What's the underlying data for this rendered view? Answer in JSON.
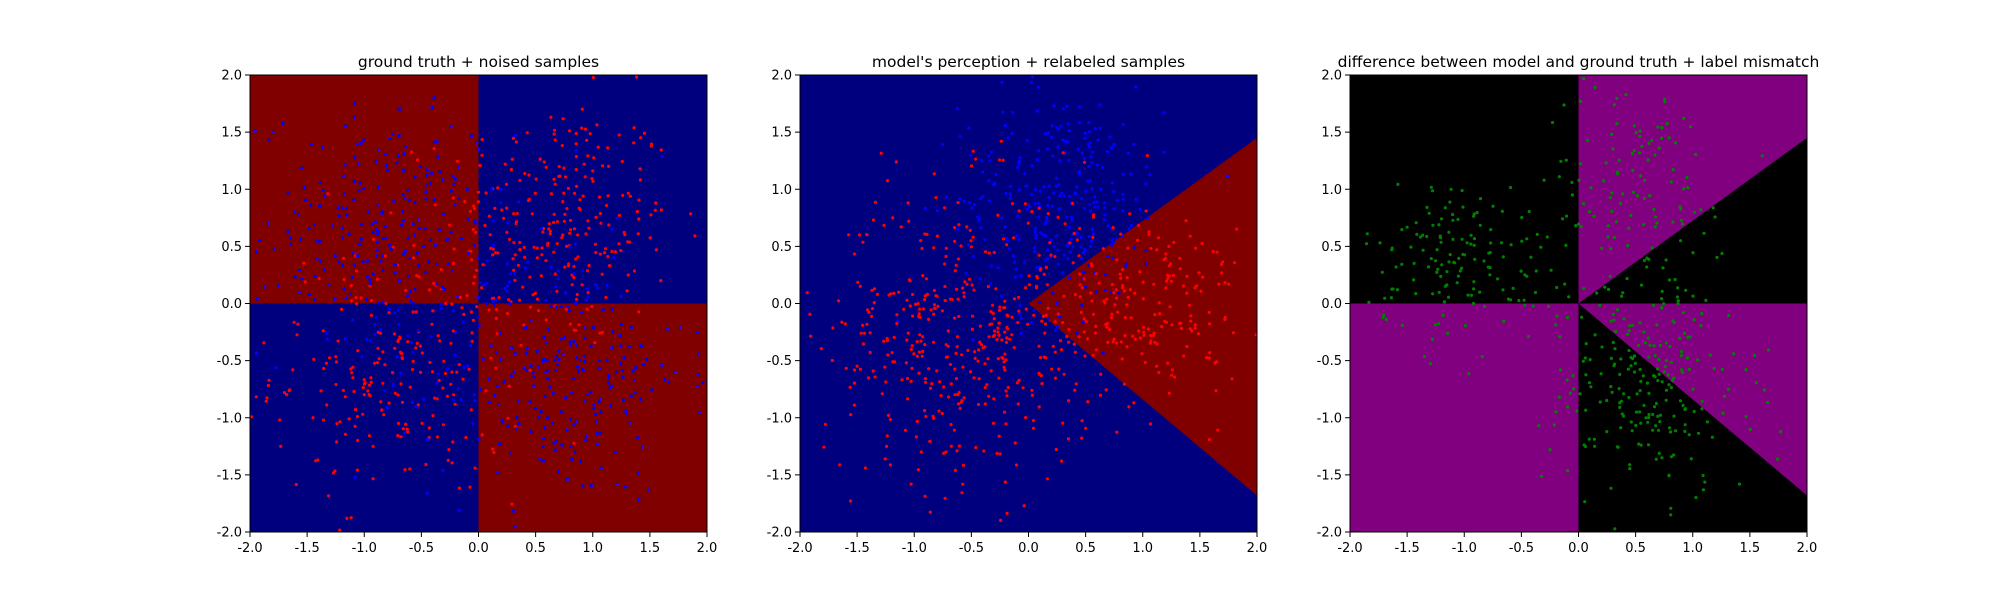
{
  "chart_data": [
    {
      "type": "scatter",
      "title": "ground truth + noised samples",
      "xlim": [
        -2.0,
        2.0
      ],
      "ylim": [
        -2.0,
        2.0
      ],
      "xticks": [
        "-2.0",
        "-1.5",
        "-1.0",
        "-0.5",
        "0.0",
        "0.5",
        "1.0",
        "1.5",
        "2.0"
      ],
      "yticks": [
        "-2.0",
        "-1.5",
        "-1.0",
        "-0.5",
        "0.0",
        "0.5",
        "1.0",
        "1.5",
        "2.0"
      ],
      "regions": [
        {
          "polygon": [
            [
              -2,
              0
            ],
            [
              0,
              0
            ],
            [
              0,
              2
            ],
            [
              -2,
              2
            ]
          ],
          "color": "#800000"
        },
        {
          "polygon": [
            [
              0,
              0
            ],
            [
              2,
              0
            ],
            [
              2,
              2
            ],
            [
              0,
              2
            ]
          ],
          "color": "#00007f"
        },
        {
          "polygon": [
            [
              -2,
              -2
            ],
            [
              0,
              -2
            ],
            [
              0,
              0
            ],
            [
              -2,
              0
            ]
          ],
          "color": "#00007f"
        },
        {
          "polygon": [
            [
              0,
              -2
            ],
            [
              2,
              -2
            ],
            [
              2,
              0
            ],
            [
              0,
              0
            ]
          ],
          "color": "#800000"
        }
      ],
      "series": [
        {
          "color": "#ff0000",
          "clusters": [
            {
              "cx": 0.7,
              "cy": 0.7,
              "sx": 0.5,
              "sy": 0.55,
              "n": 260
            },
            {
              "cx": -0.7,
              "cy": -0.6,
              "sx": 0.55,
              "sy": 0.55,
              "n": 230
            }
          ]
        },
        {
          "color": "#0000ff",
          "clusters": [
            {
              "cx": -0.8,
              "cy": 0.6,
              "sx": 0.55,
              "sy": 0.55,
              "n": 260
            },
            {
              "cx": 0.7,
              "cy": -0.6,
              "sx": 0.55,
              "sy": 0.55,
              "n": 260
            }
          ]
        }
      ]
    },
    {
      "type": "scatter",
      "title": "model's perception + relabeled samples",
      "xlim": [
        -2.0,
        2.0
      ],
      "ylim": [
        -2.0,
        2.0
      ],
      "xticks": [
        "-2.0",
        "-1.5",
        "-1.0",
        "-0.5",
        "0.0",
        "0.5",
        "1.0",
        "1.5",
        "2.0"
      ],
      "yticks": [
        "-2.0",
        "-1.5",
        "-1.0",
        "-0.5",
        "0.0",
        "0.5",
        "1.0",
        "1.5",
        "2.0"
      ],
      "regions": [
        {
          "polygon": [
            [
              -2,
              -2
            ],
            [
              2,
              -2
            ],
            [
              2,
              2
            ],
            [
              -2,
              2
            ]
          ],
          "color": "#00007f"
        },
        {
          "polygon": [
            [
              0,
              0
            ],
            [
              2,
              1.45
            ],
            [
              2,
              -1.68
            ]
          ],
          "color": "#800000"
        }
      ],
      "series": [
        {
          "color": "#0000ff",
          "clusters": [
            {
              "cx": 0.3,
              "cy": 0.9,
              "sx": 0.45,
              "sy": 0.5,
              "n": 300
            }
          ]
        },
        {
          "color": "#ff0000",
          "clusters": [
            {
              "cx": -0.6,
              "cy": -0.3,
              "sx": 0.6,
              "sy": 0.65,
              "n": 420
            },
            {
              "cx": 1.0,
              "cy": 0.0,
              "sx": 0.45,
              "sy": 0.45,
              "n": 200
            }
          ]
        }
      ]
    },
    {
      "type": "scatter",
      "title": "difference between model and ground truth + label mismatch",
      "xlim": [
        -2.0,
        2.0
      ],
      "ylim": [
        -2.0,
        2.0
      ],
      "xticks": [
        "-2.0",
        "-1.5",
        "-1.0",
        "-0.5",
        "0.0",
        "0.5",
        "1.0",
        "1.5",
        "2.0"
      ],
      "yticks": [
        "-2.0",
        "-1.5",
        "-1.0",
        "-0.5",
        "0.0",
        "0.5",
        "1.0",
        "1.5",
        "2.0"
      ],
      "regions": [
        {
          "polygon": [
            [
              -2,
              -2
            ],
            [
              2,
              -2
            ],
            [
              2,
              2
            ],
            [
              -2,
              2
            ]
          ],
          "color": "#000000"
        },
        {
          "polygon": [
            [
              0,
              0
            ],
            [
              0,
              2
            ],
            [
              2,
              2
            ],
            [
              2,
              1.45
            ]
          ],
          "color": "#800080"
        },
        {
          "polygon": [
            [
              0,
              0
            ],
            [
              2,
              0
            ],
            [
              2,
              -1.68
            ]
          ],
          "color": "#800080"
        },
        {
          "polygon": [
            [
              -2,
              -2
            ],
            [
              0,
              -2
            ],
            [
              0,
              0
            ],
            [
              -2,
              0
            ]
          ],
          "color": "#800080"
        }
      ],
      "series": [
        {
          "color": "#008000",
          "clusters": [
            {
              "cx": -1.0,
              "cy": 0.4,
              "sx": 0.45,
              "sy": 0.35,
              "n": 150
            },
            {
              "cx": 0.5,
              "cy": 1.0,
              "sx": 0.4,
              "sy": 0.5,
              "n": 120
            },
            {
              "cx": 0.6,
              "cy": -0.7,
              "sx": 0.45,
              "sy": 0.5,
              "n": 230
            }
          ]
        }
      ]
    }
  ]
}
